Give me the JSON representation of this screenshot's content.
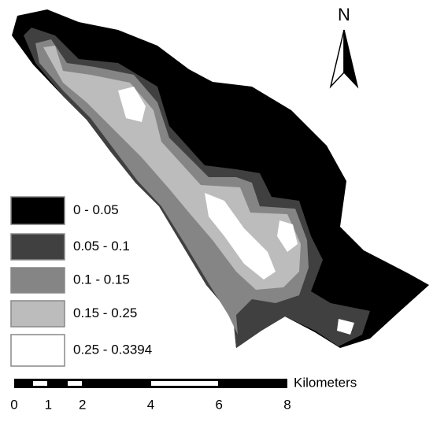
{
  "north": "N",
  "legend": [
    {
      "label": "0 - 0.05",
      "color": "#000000"
    },
    {
      "label": "0.05 - 0.1",
      "color": "#404040"
    },
    {
      "label": "0.1 - 0.15",
      "color": "#858585"
    },
    {
      "label": "0.15 - 0.25",
      "color": "#bcbcbc"
    },
    {
      "label": "0.25 - 0.3394",
      "color": "#ffffff"
    }
  ],
  "scale_bar": {
    "unit": "Kilometers",
    "ticks": [
      0,
      1,
      2,
      4,
      6,
      8
    ]
  }
}
